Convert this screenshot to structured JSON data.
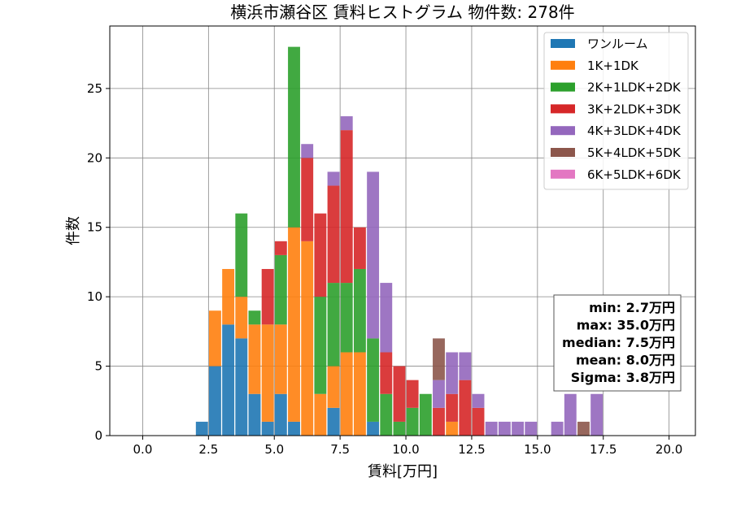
{
  "chart_data": {
    "type": "bar",
    "stacked": true,
    "title": "横浜市瀬谷区 賃料ヒストグラム 物件数: 278件",
    "xlabel": "賃料[万円]",
    "ylabel": "件数",
    "xlim": [
      -1.25,
      21.0
    ],
    "ylim": [
      0,
      29.5
    ],
    "grid": true,
    "legend_position": "top-right",
    "x_ticks": [
      "0.0",
      "2.5",
      "5.0",
      "7.5",
      "10.0",
      "12.5",
      "15.0",
      "17.5",
      "20.0"
    ],
    "y_ticks": [
      "0",
      "5",
      "10",
      "15",
      "20",
      "25"
    ],
    "bin_width": 0.5,
    "bins": [
      2.25,
      2.75,
      3.25,
      3.75,
      4.25,
      4.75,
      5.25,
      5.75,
      6.25,
      6.75,
      7.25,
      7.75,
      8.25,
      8.75,
      9.25,
      9.75,
      10.25,
      10.75,
      11.25,
      11.75,
      12.25,
      12.75,
      13.25,
      13.75,
      14.25,
      14.75,
      15.25,
      15.75,
      16.25,
      16.75,
      17.25,
      17.75
    ],
    "series": [
      {
        "name": "ワンルーム",
        "color": "#1f77b4",
        "values": [
          1,
          5,
          8,
          7,
          3,
          1,
          3,
          1,
          0,
          0,
          2,
          0,
          0,
          1,
          0,
          0,
          0,
          0,
          0,
          0,
          0,
          0,
          0,
          0,
          0,
          0,
          0,
          0,
          0,
          0,
          0,
          0
        ]
      },
      {
        "name": "1K+1DK",
        "color": "#ff7f0e",
        "values": [
          0,
          4,
          4,
          3,
          5,
          7,
          5,
          14,
          14,
          3,
          3,
          6,
          6,
          0,
          0,
          0,
          0,
          0,
          0,
          1,
          0,
          0,
          0,
          0,
          0,
          0,
          0,
          0,
          0,
          0,
          0,
          0
        ]
      },
      {
        "name": "2K+1LDK+2DK",
        "color": "#2ca02c",
        "values": [
          0,
          0,
          0,
          6,
          1,
          0,
          5,
          13,
          0,
          7,
          6,
          5,
          6,
          6,
          3,
          1,
          2,
          3,
          0,
          0,
          0,
          0,
          0,
          0,
          0,
          0,
          0,
          0,
          0,
          0,
          0,
          0
        ]
      },
      {
        "name": "3K+2LDK+3DK",
        "color": "#d62728",
        "values": [
          0,
          0,
          0,
          0,
          0,
          4,
          1,
          0,
          6,
          6,
          7,
          11,
          3,
          0,
          3,
          4,
          2,
          0,
          2,
          2,
          4,
          2,
          0,
          0,
          0,
          0,
          0,
          0,
          0,
          0,
          0,
          0
        ]
      },
      {
        "name": "4K+3LDK+4DK",
        "color": "#9467bd",
        "values": [
          0,
          0,
          0,
          0,
          0,
          0,
          0,
          0,
          1,
          0,
          1,
          1,
          0,
          12,
          5,
          0,
          0,
          0,
          2,
          3,
          2,
          1,
          1,
          1,
          1,
          1,
          0,
          1,
          3,
          0,
          3,
          0
        ]
      },
      {
        "name": "5K+4LDK+5DK",
        "color": "#8c564b",
        "values": [
          0,
          0,
          0,
          0,
          0,
          0,
          0,
          0,
          0,
          0,
          0,
          0,
          0,
          0,
          0,
          0,
          0,
          0,
          3,
          0,
          0,
          0,
          0,
          0,
          0,
          0,
          0,
          0,
          0,
          1,
          0,
          0
        ]
      },
      {
        "name": "6K+5LDK+6DK",
        "color": "#e377c2",
        "values": [
          0,
          0,
          0,
          0,
          0,
          0,
          0,
          0,
          0,
          0,
          0,
          0,
          0,
          0,
          0,
          0,
          0,
          0,
          0,
          0,
          0,
          0,
          0,
          0,
          0,
          0,
          0,
          0,
          0,
          0,
          0,
          0
        ]
      }
    ],
    "stats": [
      "min: 2.7万円",
      "max: 35.0万円",
      "median: 7.5万円",
      "mean: 8.0万円",
      "Sigma: 3.8万円"
    ]
  }
}
